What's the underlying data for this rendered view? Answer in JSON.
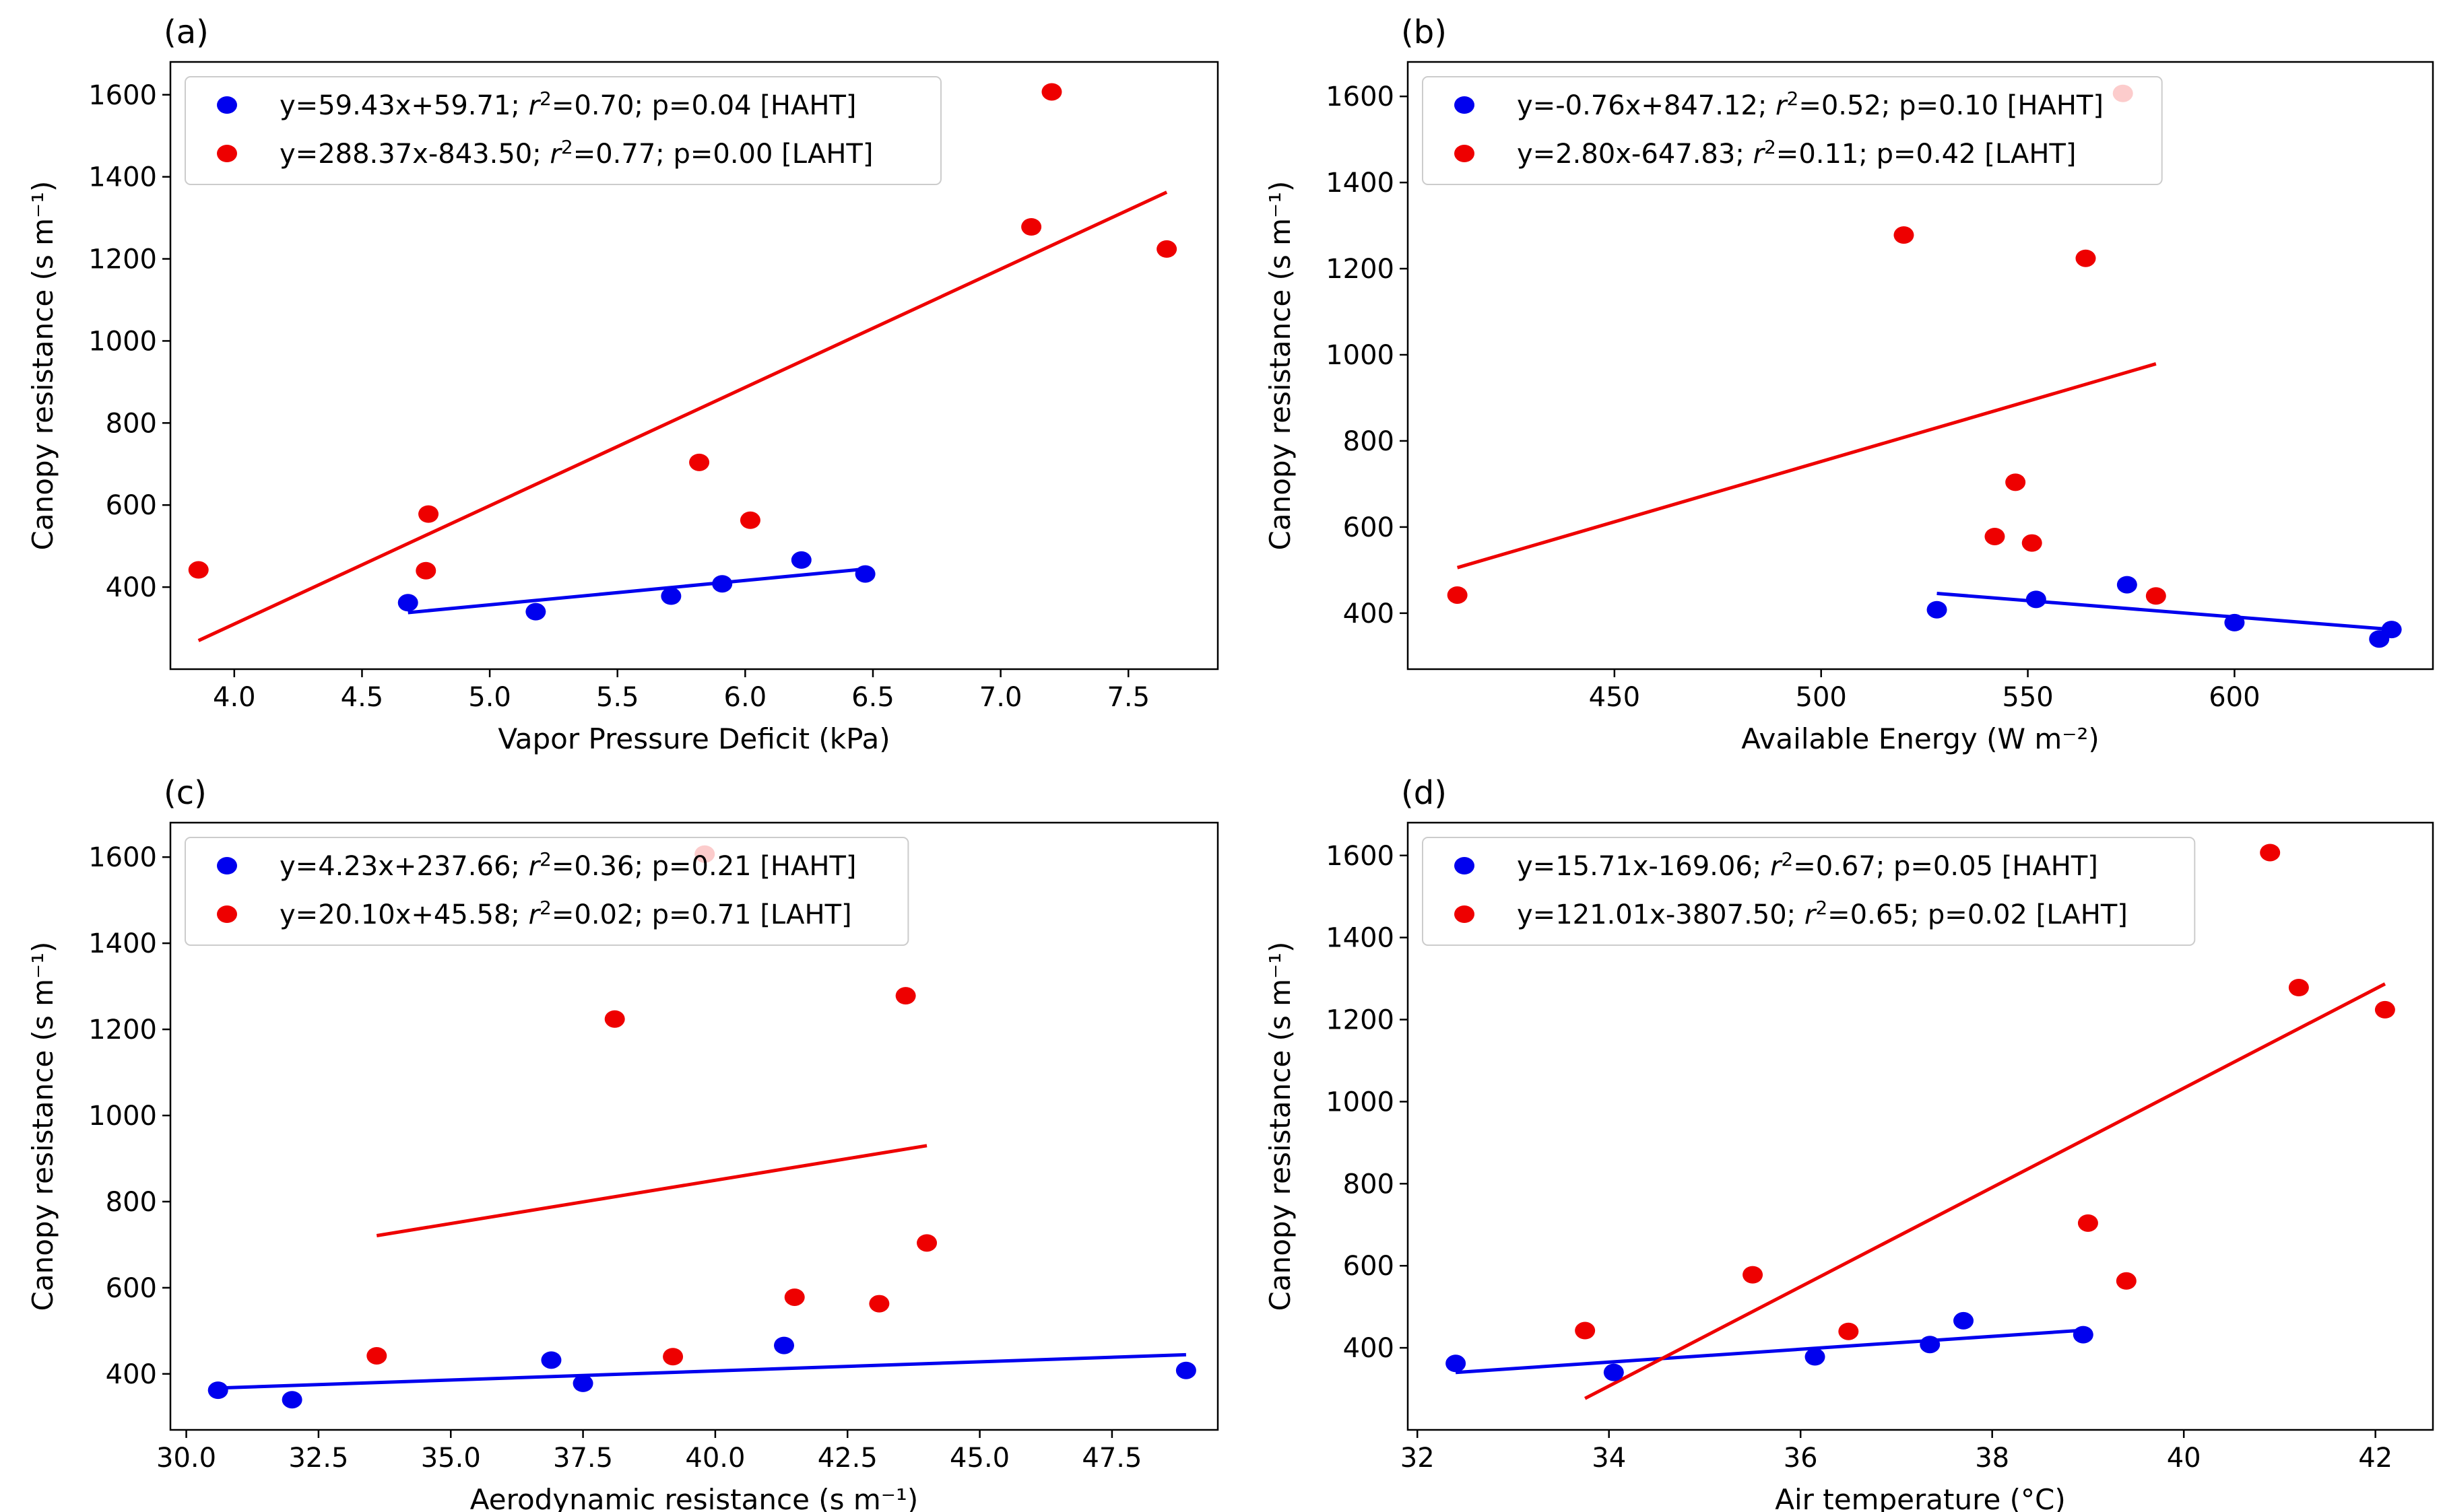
{
  "colors": {
    "haht": "#0000ee",
    "laht": "#ee0000",
    "frame": "#000000",
    "legend_border": "#cccccc"
  },
  "chart_data": [
    {
      "type": "scatter",
      "panel": "(a)",
      "xlabel": "Vapor Pressure Deficit (kPa)",
      "ylabel": "Canopy resistance (s m⁻¹)",
      "xlim": [
        3.75,
        7.85
      ],
      "ylim": [
        200,
        1680
      ],
      "xticks": [
        4.0,
        4.5,
        5.0,
        5.5,
        6.0,
        6.5,
        7.0,
        7.5
      ],
      "xtick_labels": [
        "4.0",
        "4.5",
        "5.0",
        "5.5",
        "6.0",
        "6.5",
        "7.0",
        "7.5"
      ],
      "yticks": [
        400,
        600,
        800,
        1000,
        1200,
        1400,
        1600
      ],
      "ytick_labels": [
        "400",
        "600",
        "800",
        "1000",
        "1200",
        "1400",
        "1600"
      ],
      "legend_position": "top-left",
      "grid": false,
      "series": [
        {
          "name": "[HAHT]",
          "legend_label": "y=59.43x+59.71; r²=0.70; p=0.04 [HAHT]",
          "color": "#0000ee",
          "points": [
            [
              4.68,
              362
            ],
            [
              5.18,
              340
            ],
            [
              5.71,
              378
            ],
            [
              5.91,
              408
            ],
            [
              6.22,
              466
            ],
            [
              6.47,
              432
            ]
          ],
          "fit": {
            "slope": 59.43,
            "intercept": 59.71,
            "x_range": [
              4.68,
              6.47
            ]
          }
        },
        {
          "name": "[LAHT]",
          "legend_label": "y=288.37x-843.50; r²=0.77; p=0.00 [LAHT]",
          "color": "#ee0000",
          "points": [
            [
              3.86,
              442
            ],
            [
              4.75,
              440
            ],
            [
              4.76,
              578
            ],
            [
              5.82,
              704
            ],
            [
              6.02,
              563
            ],
            [
              7.12,
              1278
            ],
            [
              7.2,
              1607
            ],
            [
              7.65,
              1224
            ]
          ],
          "fit": {
            "slope": 288.37,
            "intercept": -843.5,
            "x_range": [
              3.86,
              7.65
            ]
          }
        }
      ]
    },
    {
      "type": "scatter",
      "panel": "(b)",
      "xlabel": "Available Energy (W m⁻²)",
      "ylabel": "Canopy resistance (s m⁻¹)",
      "xlim": [
        400,
        648
      ],
      "ylim": [
        270,
        1680
      ],
      "xticks": [
        450,
        500,
        550,
        600
      ],
      "xtick_labels": [
        "450",
        "500",
        "550",
        "600"
      ],
      "yticks": [
        400,
        600,
        800,
        1000,
        1200,
        1400,
        1600
      ],
      "ytick_labels": [
        "400",
        "600",
        "800",
        "1000",
        "1200",
        "1400",
        "1600"
      ],
      "legend_position": "top-left",
      "grid": false,
      "series": [
        {
          "name": "[HAHT]",
          "legend_label": "y=-0.76x+847.12; r²=0.52; p=0.10 [HAHT]",
          "color": "#0000ee",
          "points": [
            [
              528,
              408
            ],
            [
              552,
              432
            ],
            [
              574,
              466
            ],
            [
              600,
              378
            ],
            [
              635,
              340
            ],
            [
              638,
              362
            ]
          ],
          "fit": {
            "slope": -0.76,
            "intercept": 847.12,
            "x_range": [
              528,
              638
            ]
          }
        },
        {
          "name": "[LAHT]",
          "legend_label": "y=2.80x-647.83; r²=0.11; p=0.42 [LAHT]",
          "color": "#ee0000",
          "points": [
            [
              412,
              442
            ],
            [
              520,
              1278
            ],
            [
              542,
              578
            ],
            [
              547,
              704
            ],
            [
              551,
              563
            ],
            [
              564,
              1224
            ],
            [
              573,
              1607
            ],
            [
              581,
              440
            ]
          ],
          "fit": {
            "slope": 2.8,
            "intercept": -647.83,
            "x_range": [
              412,
              581
            ]
          }
        }
      ]
    },
    {
      "type": "scatter",
      "panel": "(c)",
      "xlabel": "Aerodynamic resistance (s m⁻¹)",
      "ylabel": "Canopy resistance (s m⁻¹)",
      "xlim": [
        29.7,
        49.5
      ],
      "ylim": [
        270,
        1680
      ],
      "xticks": [
        30.0,
        32.5,
        35.0,
        37.5,
        40.0,
        42.5,
        45.0,
        47.5
      ],
      "xtick_labels": [
        "30.0",
        "32.5",
        "35.0",
        "37.5",
        "40.0",
        "42.5",
        "45.0",
        "47.5"
      ],
      "yticks": [
        400,
        600,
        800,
        1000,
        1200,
        1400,
        1600
      ],
      "ytick_labels": [
        "400",
        "600",
        "800",
        "1000",
        "1200",
        "1400",
        "1600"
      ],
      "legend_position": "top-left",
      "grid": false,
      "series": [
        {
          "name": "[HAHT]",
          "legend_label": "y=4.23x+237.66; r²=0.36; p=0.21 [HAHT]",
          "color": "#0000ee",
          "points": [
            [
              30.6,
              362
            ],
            [
              32.0,
              340
            ],
            [
              36.9,
              432
            ],
            [
              37.5,
              378
            ],
            [
              41.3,
              466
            ],
            [
              48.9,
              408
            ]
          ],
          "fit": {
            "slope": 4.23,
            "intercept": 237.66,
            "x_range": [
              30.6,
              48.9
            ]
          }
        },
        {
          "name": "[LAHT]",
          "legend_label": "y=20.10x+45.58; r²=0.02; p=0.71 [LAHT]",
          "color": "#ee0000",
          "points": [
            [
              33.6,
              442
            ],
            [
              38.1,
              1224
            ],
            [
              39.2,
              440
            ],
            [
              39.8,
              1607
            ],
            [
              41.5,
              578
            ],
            [
              43.1,
              563
            ],
            [
              43.6,
              1278
            ],
            [
              44.0,
              704
            ]
          ],
          "fit": {
            "slope": 20.1,
            "intercept": 45.58,
            "x_range": [
              33.6,
              44.0
            ]
          }
        }
      ]
    },
    {
      "type": "scatter",
      "panel": "(d)",
      "xlabel": "Air temperature  (°C)",
      "ylabel": "Canopy resistance (s m⁻¹)",
      "xlim": [
        31.9,
        42.6
      ],
      "ylim": [
        200,
        1680
      ],
      "xticks": [
        32,
        34,
        36,
        38,
        40,
        42
      ],
      "xtick_labels": [
        "32",
        "34",
        "36",
        "38",
        "40",
        "42"
      ],
      "yticks": [
        400,
        600,
        800,
        1000,
        1200,
        1400,
        1600
      ],
      "ytick_labels": [
        "400",
        "600",
        "800",
        "1000",
        "1200",
        "1400",
        "1600"
      ],
      "legend_position": "top-left",
      "grid": false,
      "series": [
        {
          "name": "[HAHT]",
          "legend_label": "y=15.71x-169.06; r²=0.67; p=0.05 [HAHT]",
          "color": "#0000ee",
          "points": [
            [
              32.4,
              362
            ],
            [
              34.05,
              340
            ],
            [
              36.15,
              378
            ],
            [
              37.35,
              408
            ],
            [
              37.7,
              466
            ],
            [
              38.95,
              432
            ]
          ],
          "fit": {
            "slope": 15.71,
            "intercept": -169.06,
            "x_range": [
              32.4,
              38.95
            ]
          }
        },
        {
          "name": "[LAHT]",
          "legend_label": "y=121.01x-3807.50; r²=0.65; p=0.02 [LAHT]",
          "color": "#ee0000",
          "points": [
            [
              33.75,
              442
            ],
            [
              35.5,
              578
            ],
            [
              36.5,
              440
            ],
            [
              39.0,
              704
            ],
            [
              39.4,
              563
            ],
            [
              40.9,
              1607
            ],
            [
              41.2,
              1278
            ],
            [
              42.1,
              1224
            ]
          ],
          "fit": {
            "slope": 121.01,
            "intercept": -3807.5,
            "x_range": [
              33.75,
              42.1
            ]
          }
        }
      ]
    }
  ]
}
